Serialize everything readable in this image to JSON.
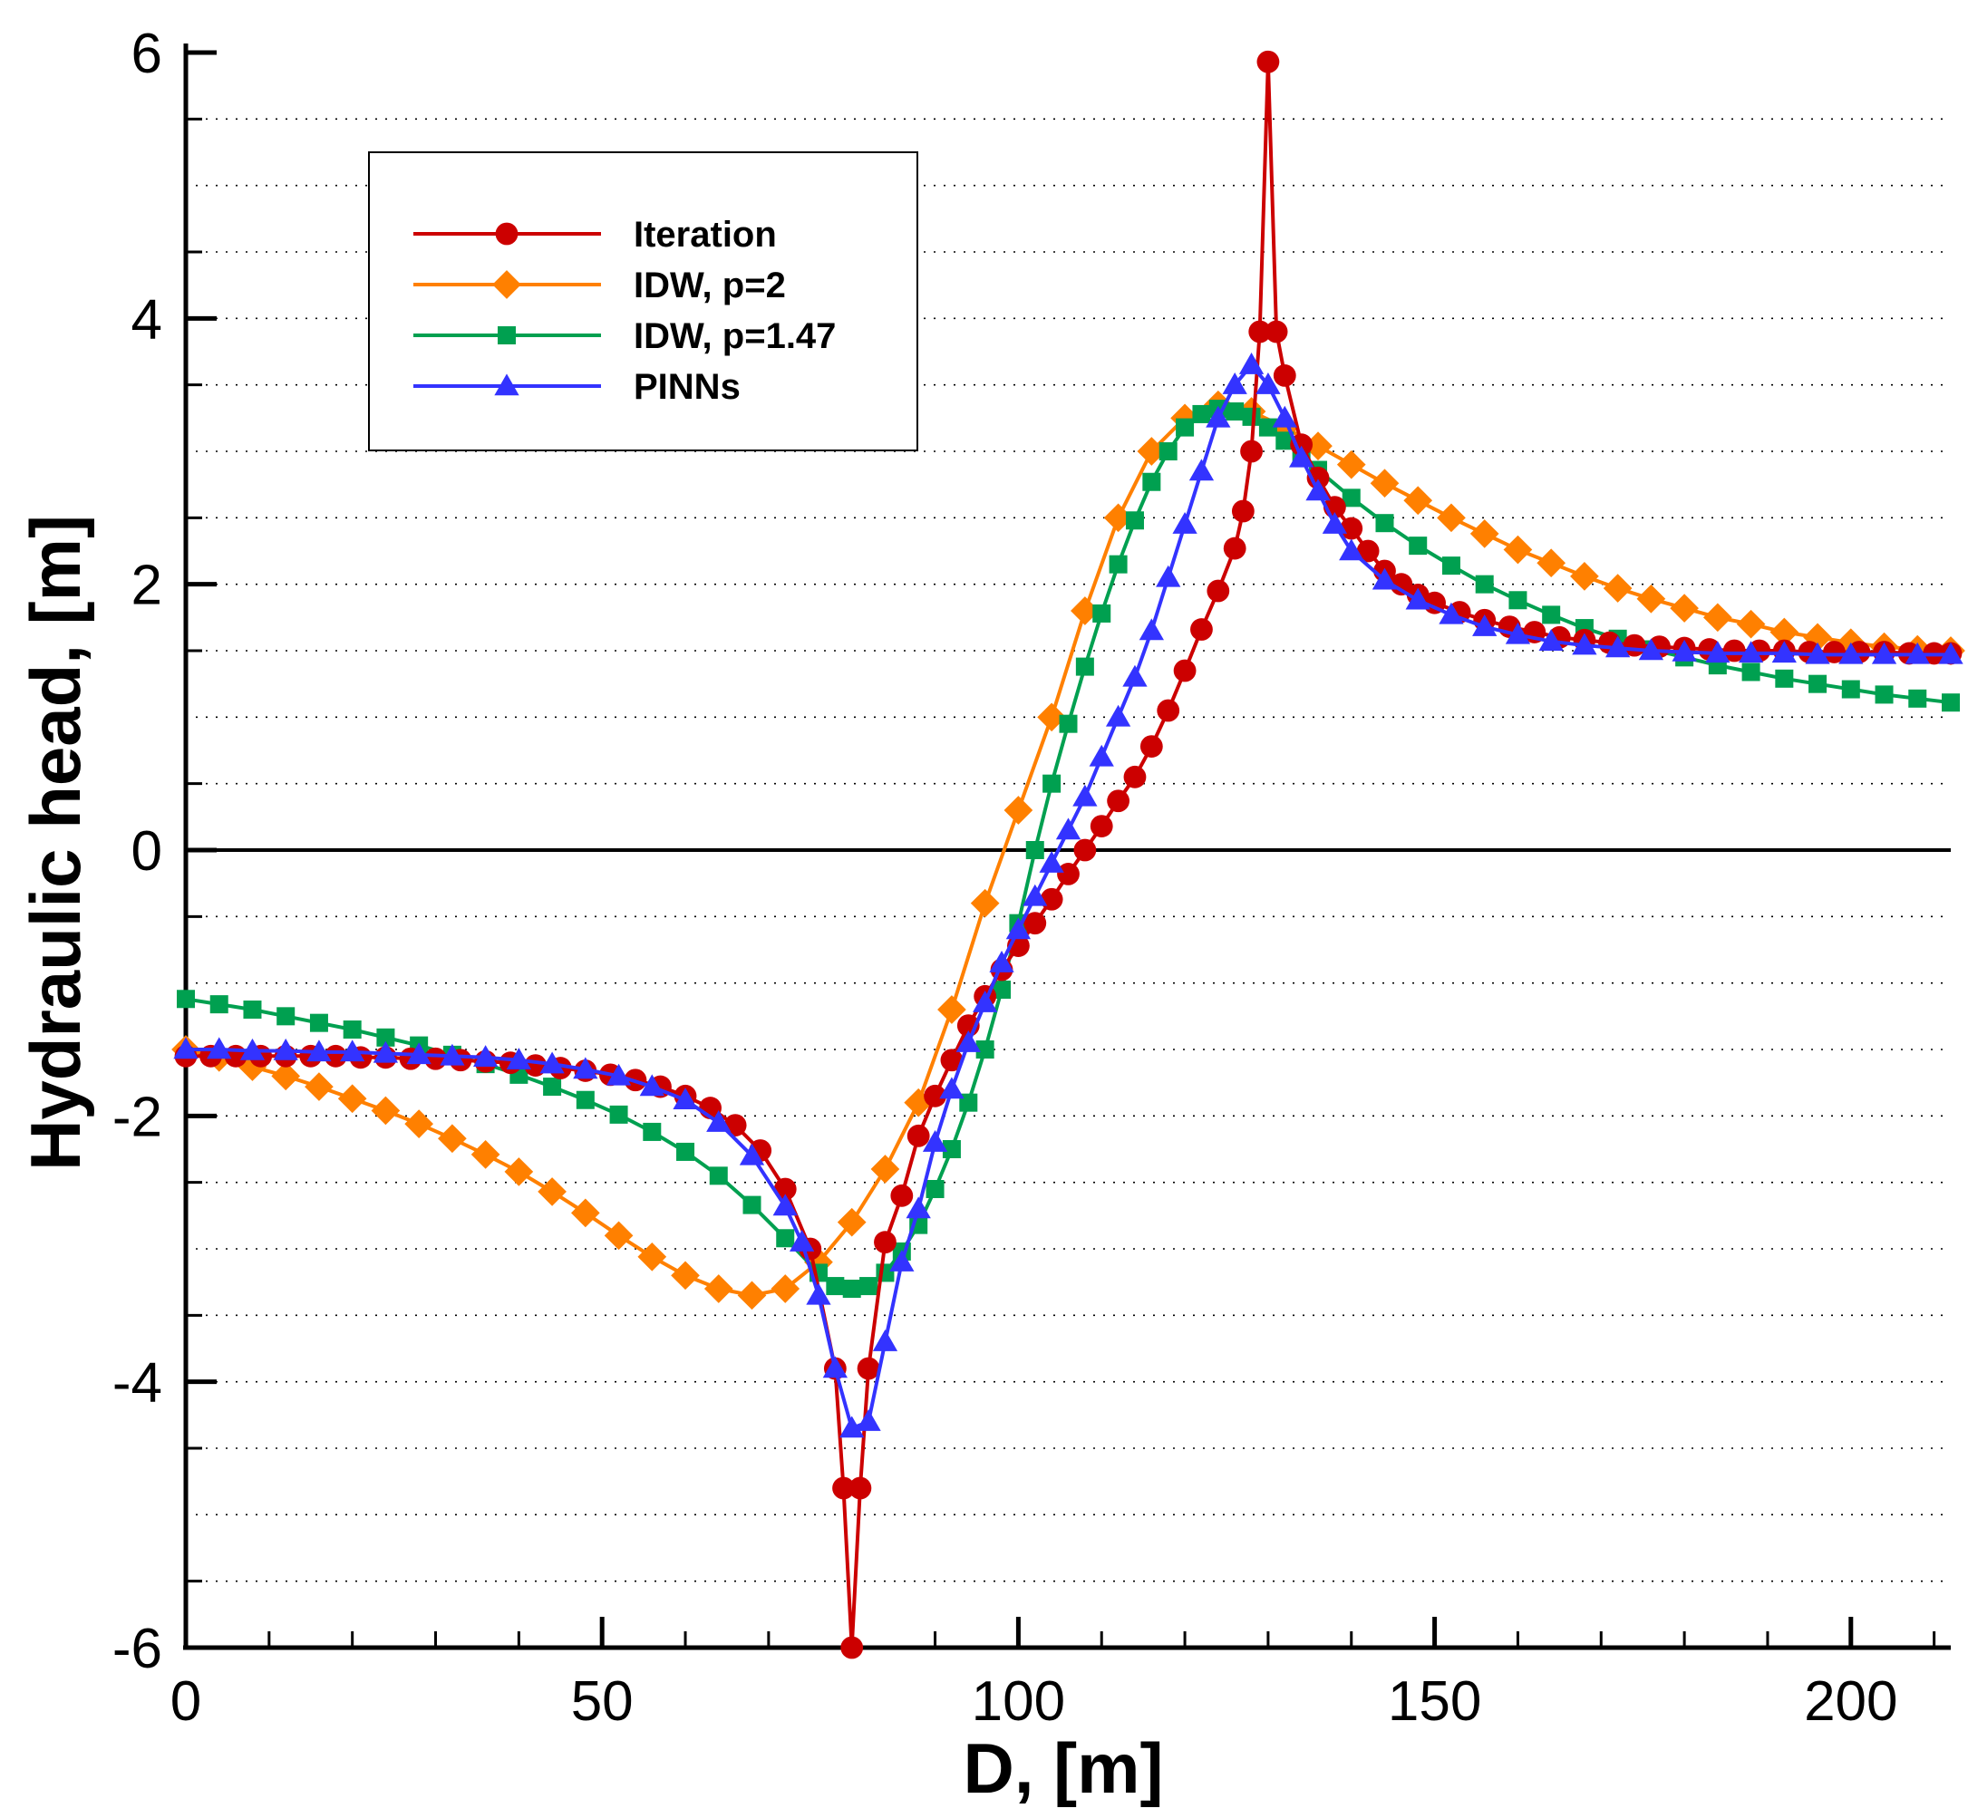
{
  "chart_data": {
    "type": "line",
    "title": "",
    "xlabel": "D, [m]",
    "ylabel": "Hydraulic head, [m]",
    "xlim": [
      0,
      212
    ],
    "ylim": [
      -6,
      6
    ],
    "xticks": [
      0,
      50,
      100,
      150,
      200
    ],
    "yticks": [
      -6,
      -4,
      -2,
      0,
      2,
      4,
      6
    ],
    "x_minor_step": 10,
    "y_minor_step": 0.5,
    "grid": "horizontal dotted",
    "zero_line": true,
    "legend_position": "top-left",
    "series": [
      {
        "name": "Iteration",
        "color": "#cc0000",
        "marker": "circle",
        "x": [
          0,
          3,
          6,
          9,
          12,
          15,
          18,
          21,
          24,
          27,
          30,
          33,
          36,
          39,
          42,
          45,
          48,
          51,
          54,
          57,
          60,
          63,
          66,
          69,
          72,
          75,
          78,
          79,
          80,
          81,
          82,
          84,
          86,
          88,
          90,
          92,
          94,
          96,
          98,
          100,
          102,
          104,
          106,
          108,
          110,
          112,
          114,
          116,
          118,
          120,
          122,
          124,
          126,
          127,
          128,
          129,
          130,
          131,
          132,
          134,
          136,
          138,
          140,
          142,
          144,
          146,
          148,
          150,
          153,
          156,
          159,
          162,
          165,
          168,
          171,
          174,
          177,
          180,
          183,
          186,
          189,
          192,
          195,
          198,
          201,
          204,
          207,
          210,
          212
        ],
        "y": [
          -1.55,
          -1.55,
          -1.55,
          -1.55,
          -1.55,
          -1.55,
          -1.55,
          -1.56,
          -1.56,
          -1.57,
          -1.57,
          -1.58,
          -1.59,
          -1.6,
          -1.62,
          -1.64,
          -1.66,
          -1.69,
          -1.73,
          -1.78,
          -1.85,
          -1.94,
          -2.07,
          -2.26,
          -2.55,
          -3.0,
          -3.9,
          -4.8,
          -6.0,
          -4.8,
          -3.9,
          -2.95,
          -2.6,
          -2.15,
          -1.85,
          -1.58,
          -1.32,
          -1.1,
          -0.9,
          -0.72,
          -0.55,
          -0.37,
          -0.18,
          0.0,
          0.18,
          0.37,
          0.55,
          0.78,
          1.05,
          1.35,
          1.66,
          1.95,
          2.27,
          2.55,
          3.0,
          3.9,
          5.93,
          3.9,
          3.57,
          3.05,
          2.8,
          2.58,
          2.42,
          2.25,
          2.1,
          2.0,
          1.92,
          1.86,
          1.79,
          1.73,
          1.68,
          1.64,
          1.6,
          1.58,
          1.56,
          1.54,
          1.53,
          1.52,
          1.51,
          1.5,
          1.5,
          1.5,
          1.49,
          1.49,
          1.49,
          1.49,
          1.48,
          1.48,
          1.48
        ]
      },
      {
        "name": "IDW, p=2",
        "color": "#ff8000",
        "marker": "diamond",
        "x": [
          0,
          4,
          8,
          12,
          16,
          20,
          24,
          28,
          32,
          36,
          40,
          44,
          48,
          52,
          56,
          60,
          64,
          68,
          72,
          76,
          80,
          84,
          88,
          92,
          96,
          100,
          104,
          108,
          112,
          116,
          120,
          124,
          128,
          132,
          136,
          140,
          144,
          148,
          152,
          156,
          160,
          164,
          168,
          172,
          176,
          180,
          184,
          188,
          192,
          196,
          200,
          204,
          208,
          212
        ],
        "y": [
          -1.5,
          -1.56,
          -1.63,
          -1.7,
          -1.78,
          -1.87,
          -1.96,
          -2.06,
          -2.17,
          -2.29,
          -2.42,
          -2.57,
          -2.73,
          -2.9,
          -3.06,
          -3.2,
          -3.3,
          -3.35,
          -3.3,
          -3.1,
          -2.8,
          -2.4,
          -1.9,
          -1.2,
          -0.4,
          0.3,
          1.0,
          1.8,
          2.5,
          3.0,
          3.25,
          3.35,
          3.3,
          3.18,
          3.04,
          2.9,
          2.76,
          2.63,
          2.5,
          2.38,
          2.26,
          2.16,
          2.06,
          1.97,
          1.89,
          1.82,
          1.75,
          1.7,
          1.64,
          1.6,
          1.56,
          1.53,
          1.51,
          1.5
        ]
      },
      {
        "name": "IDW, p=1.47",
        "color": "#00a050",
        "marker": "square",
        "x": [
          0,
          4,
          8,
          12,
          16,
          20,
          24,
          28,
          32,
          36,
          40,
          44,
          48,
          52,
          56,
          60,
          64,
          68,
          72,
          76,
          78,
          80,
          82,
          84,
          86,
          88,
          90,
          92,
          94,
          96,
          98,
          100,
          102,
          104,
          106,
          108,
          110,
          112,
          114,
          116,
          118,
          120,
          122,
          124,
          126,
          128,
          130,
          132,
          134,
          136,
          140,
          144,
          148,
          152,
          156,
          160,
          164,
          168,
          172,
          176,
          180,
          184,
          188,
          192,
          196,
          200,
          204,
          208,
          212
        ],
        "y": [
          -1.12,
          -1.16,
          -1.2,
          -1.25,
          -1.3,
          -1.35,
          -1.41,
          -1.47,
          -1.54,
          -1.61,
          -1.69,
          -1.78,
          -1.88,
          -1.99,
          -2.12,
          -2.27,
          -2.45,
          -2.67,
          -2.92,
          -3.18,
          -3.28,
          -3.3,
          -3.28,
          -3.18,
          -3.02,
          -2.82,
          -2.55,
          -2.25,
          -1.9,
          -1.5,
          -1.05,
          -0.55,
          0.0,
          0.5,
          0.95,
          1.38,
          1.78,
          2.15,
          2.48,
          2.77,
          3.0,
          3.18,
          3.28,
          3.32,
          3.3,
          3.26,
          3.18,
          3.08,
          2.97,
          2.86,
          2.65,
          2.46,
          2.29,
          2.14,
          2.0,
          1.88,
          1.77,
          1.67,
          1.59,
          1.51,
          1.45,
          1.39,
          1.34,
          1.29,
          1.25,
          1.21,
          1.17,
          1.14,
          1.11
        ]
      },
      {
        "name": "PINNs",
        "color": "#3333ff",
        "marker": "triangle",
        "x": [
          0,
          4,
          8,
          12,
          16,
          20,
          24,
          28,
          32,
          36,
          40,
          44,
          48,
          52,
          56,
          60,
          64,
          68,
          72,
          74,
          76,
          78,
          80,
          82,
          84,
          86,
          88,
          90,
          92,
          94,
          96,
          98,
          100,
          102,
          104,
          106,
          108,
          110,
          112,
          114,
          116,
          118,
          120,
          122,
          124,
          126,
          128,
          130,
          132,
          134,
          136,
          138,
          140,
          144,
          148,
          152,
          156,
          160,
          164,
          168,
          172,
          176,
          180,
          184,
          188,
          192,
          196,
          200,
          204,
          208,
          212
        ],
        "y": [
          -1.5,
          -1.5,
          -1.51,
          -1.51,
          -1.52,
          -1.52,
          -1.53,
          -1.54,
          -1.55,
          -1.56,
          -1.58,
          -1.61,
          -1.65,
          -1.7,
          -1.78,
          -1.88,
          -2.05,
          -2.3,
          -2.68,
          -2.95,
          -3.35,
          -3.9,
          -4.35,
          -4.3,
          -3.7,
          -3.1,
          -2.7,
          -2.2,
          -1.8,
          -1.45,
          -1.15,
          -0.85,
          -0.6,
          -0.35,
          -0.1,
          0.15,
          0.4,
          0.7,
          1.0,
          1.3,
          1.65,
          2.05,
          2.45,
          2.85,
          3.25,
          3.5,
          3.65,
          3.5,
          3.25,
          2.95,
          2.7,
          2.45,
          2.25,
          2.03,
          1.88,
          1.77,
          1.68,
          1.62,
          1.57,
          1.54,
          1.52,
          1.5,
          1.49,
          1.48,
          1.48,
          1.48,
          1.47,
          1.47,
          1.47,
          1.47,
          1.47
        ]
      }
    ]
  }
}
